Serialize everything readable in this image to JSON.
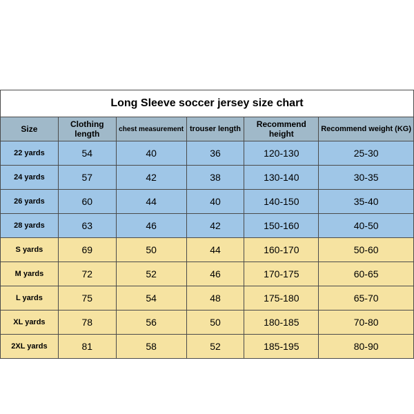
{
  "title": "Long Sleeve soccer jersey size chart",
  "columns": [
    {
      "label": "Size",
      "width": "14%",
      "fontsize": "12px"
    },
    {
      "label": "Clothing length",
      "width": "14%",
      "fontsize": "12px"
    },
    {
      "label": "chest measurement",
      "width": "17%",
      "fontsize": "10px"
    },
    {
      "label": "trouser length",
      "width": "14%",
      "fontsize": "11px"
    },
    {
      "label": "Recommend height",
      "width": "18%",
      "fontsize": "12px"
    },
    {
      "label": "Recommend weight (KG)",
      "width": "23%",
      "fontsize": "11px"
    }
  ],
  "header_bg": "#a0b9c9",
  "groups": [
    {
      "bg": "#9fc6e7",
      "rows": [
        [
          "22 yards",
          "54",
          "40",
          "36",
          "120-130",
          "25-30"
        ],
        [
          "24 yards",
          "57",
          "42",
          "38",
          "130-140",
          "30-35"
        ],
        [
          "26 yards",
          "60",
          "44",
          "40",
          "140-150",
          "35-40"
        ],
        [
          "28 yards",
          "63",
          "46",
          "42",
          "150-160",
          "40-50"
        ]
      ]
    },
    {
      "bg": "#f6e3a1",
      "rows": [
        [
          "S yards",
          "69",
          "50",
          "44",
          "160-170",
          "50-60"
        ],
        [
          "M yards",
          "72",
          "52",
          "46",
          "170-175",
          "60-65"
        ],
        [
          "L yards",
          "75",
          "54",
          "48",
          "175-180",
          "65-70"
        ],
        [
          "XL yards",
          "78",
          "56",
          "50",
          "180-185",
          "70-80"
        ],
        [
          "2XL yards",
          "81",
          "58",
          "52",
          "185-195",
          "80-90"
        ]
      ]
    }
  ],
  "number_fontsize": "14px",
  "size_fontsize": "11px",
  "border_color": "#4a4a4a"
}
